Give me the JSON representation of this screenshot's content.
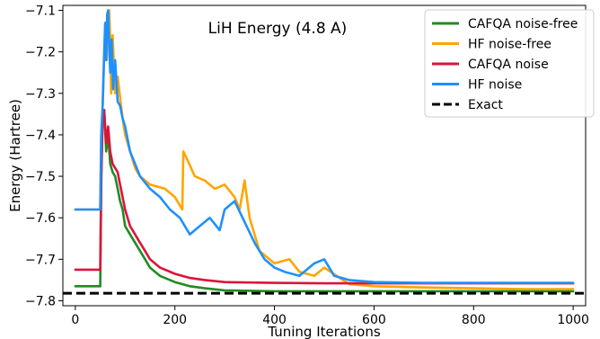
{
  "chart_data": {
    "type": "line",
    "title": "LiH Energy (4.8 A)",
    "xlabel": "Tuning Iterations",
    "ylabel": "Energy (Hartree)",
    "xlim": [
      -25,
      1025
    ],
    "ylim": [
      -7.812,
      -7.088
    ],
    "xticks": [
      0,
      200,
      400,
      600,
      800,
      1000
    ],
    "yticks": [
      -7.1,
      -7.2,
      -7.3,
      -7.4,
      -7.5,
      -7.6,
      -7.7,
      -7.8
    ],
    "xtick_labels": [
      "0",
      "200",
      "400",
      "600",
      "800",
      "1000"
    ],
    "ytick_labels": [
      "−7.1",
      "−7.2",
      "−7.3",
      "−7.4",
      "−7.5",
      "−7.6",
      "−7.7",
      "−7.8"
    ],
    "grid": false,
    "legend_position": "top-right",
    "series": [
      {
        "name": "CAFQA noise-free",
        "color": "#228B22",
        "x": [
          0,
          50,
          52,
          55,
          58,
          62,
          66,
          70,
          75,
          80,
          85,
          90,
          95,
          100,
          110,
          120,
          130,
          140,
          150,
          170,
          200,
          230,
          260,
          300,
          400,
          500,
          600,
          700,
          800,
          900,
          1000
        ],
        "y": [
          -7.765,
          -7.765,
          -7.52,
          -7.36,
          -7.34,
          -7.44,
          -7.4,
          -7.47,
          -7.49,
          -7.5,
          -7.53,
          -7.56,
          -7.58,
          -7.62,
          -7.64,
          -7.66,
          -7.68,
          -7.7,
          -7.72,
          -7.74,
          -7.755,
          -7.765,
          -7.77,
          -7.775,
          -7.777,
          -7.777,
          -7.777,
          -7.777,
          -7.777,
          -7.777,
          -7.777
        ]
      },
      {
        "name": "HF noise-free",
        "color": "#FFA500",
        "x": [
          0,
          50,
          52,
          55,
          58,
          60,
          63,
          65,
          68,
          70,
          72,
          75,
          80,
          85,
          90,
          95,
          100,
          110,
          120,
          130,
          150,
          180,
          200,
          215,
          217,
          225,
          240,
          260,
          280,
          300,
          320,
          330,
          340,
          350,
          370,
          400,
          430,
          450,
          480,
          500,
          550,
          600,
          700,
          800,
          900,
          1000
        ],
        "y": [
          -7.58,
          -7.58,
          -7.4,
          -7.33,
          -7.21,
          -7.18,
          -7.22,
          -7.11,
          -7.1,
          -7.17,
          -7.3,
          -7.16,
          -7.3,
          -7.26,
          -7.31,
          -7.36,
          -7.4,
          -7.44,
          -7.48,
          -7.5,
          -7.52,
          -7.53,
          -7.55,
          -7.58,
          -7.44,
          -7.46,
          -7.5,
          -7.51,
          -7.53,
          -7.52,
          -7.55,
          -7.58,
          -7.51,
          -7.6,
          -7.68,
          -7.71,
          -7.7,
          -7.73,
          -7.74,
          -7.72,
          -7.76,
          -7.765,
          -7.768,
          -7.77,
          -7.772,
          -7.772
        ]
      },
      {
        "name": "CAFQA noise",
        "color": "#DC143C",
        "x": [
          0,
          50,
          52,
          55,
          58,
          62,
          66,
          70,
          75,
          80,
          85,
          90,
          95,
          100,
          110,
          120,
          130,
          140,
          150,
          170,
          200,
          230,
          260,
          300,
          400,
          500,
          600,
          700,
          800,
          900,
          1000
        ],
        "y": [
          -7.725,
          -7.725,
          -7.5,
          -7.35,
          -7.34,
          -7.42,
          -7.38,
          -7.44,
          -7.47,
          -7.48,
          -7.49,
          -7.52,
          -7.55,
          -7.58,
          -7.62,
          -7.64,
          -7.66,
          -7.68,
          -7.7,
          -7.72,
          -7.735,
          -7.745,
          -7.75,
          -7.755,
          -7.757,
          -7.758,
          -7.758,
          -7.758,
          -7.758,
          -7.758,
          -7.758
        ]
      },
      {
        "name": "HF noise",
        "color": "#1E90FF",
        "x": [
          0,
          50,
          52,
          55,
          58,
          60,
          62,
          64,
          66,
          68,
          70,
          73,
          76,
          80,
          85,
          90,
          95,
          100,
          110,
          120,
          130,
          150,
          170,
          190,
          210,
          220,
          230,
          250,
          270,
          290,
          300,
          320,
          340,
          360,
          380,
          400,
          420,
          450,
          480,
          500,
          520,
          550,
          600,
          700,
          800,
          900,
          1000
        ],
        "y": [
          -7.58,
          -7.58,
          -7.4,
          -7.33,
          -7.2,
          -7.13,
          -7.22,
          -7.11,
          -7.1,
          -7.18,
          -7.25,
          -7.17,
          -7.29,
          -7.22,
          -7.32,
          -7.33,
          -7.36,
          -7.38,
          -7.44,
          -7.47,
          -7.5,
          -7.53,
          -7.55,
          -7.58,
          -7.6,
          -7.62,
          -7.64,
          -7.62,
          -7.6,
          -7.63,
          -7.58,
          -7.56,
          -7.61,
          -7.66,
          -7.7,
          -7.72,
          -7.73,
          -7.74,
          -7.71,
          -7.7,
          -7.74,
          -7.75,
          -7.755,
          -7.757,
          -7.757,
          -7.757,
          -7.757
        ]
      },
      {
        "name": "Exact",
        "color": "#000000",
        "dashed": true,
        "y_const": -7.782
      }
    ]
  }
}
